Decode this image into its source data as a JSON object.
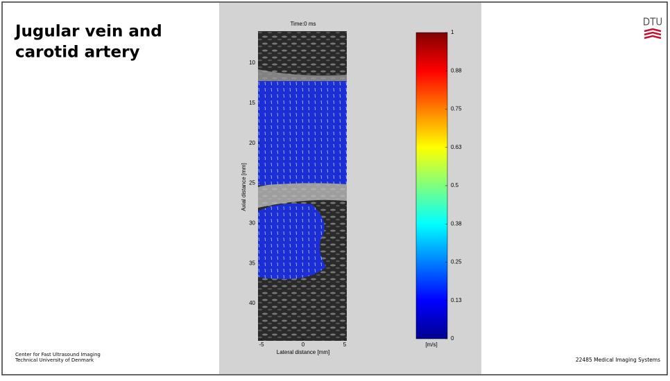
{
  "slide": {
    "title": "Jugular vein and carotid artery",
    "logo": "DTU",
    "footer_left": [
      "Center for Fast Ultrasound Imaging",
      "Technical University of Denmark"
    ],
    "footer_right": "22485 Medical Imaging Systems"
  },
  "figure": {
    "title": "Time:0 ms",
    "y_label": "Axial distance [mm]",
    "x_label": "Lateral distance [mm]",
    "yticks": [
      10,
      15,
      20,
      25,
      30,
      35,
      40
    ],
    "xticks": [
      -5,
      0,
      5
    ],
    "colorbar": {
      "unit": "[m/s]",
      "ticks": [
        0,
        {
          "value": 0.125,
          "label": "0.13"
        },
        0.25,
        {
          "value": 0.375,
          "label": "0.38"
        },
        0.5,
        {
          "value": 0.625,
          "label": "0.63"
        },
        0.75,
        {
          "value": 0.875,
          "label": "0.88"
        },
        1
      ]
    }
  }
}
